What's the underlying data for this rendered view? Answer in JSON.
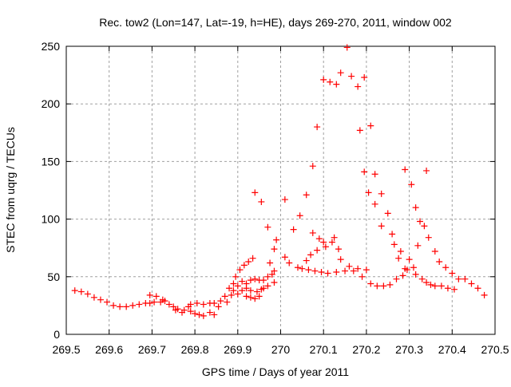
{
  "chart_data": {
    "type": "scatter",
    "title": "Rec. tow2 (Lon=147, Lat=-19, h=HE), days 269-270, 2011, window 002",
    "xlabel": "GPS time / Days of year 2011",
    "ylabel": "STEC from uqrg / TECUs",
    "xlim": [
      269.5,
      270.5
    ],
    "ylim": [
      0,
      250
    ],
    "xticks": [
      "269.5",
      "269.6",
      "269.7",
      "269.8",
      "269.9",
      "270",
      "270.1",
      "270.2",
      "270.3",
      "270.4",
      "270.5"
    ],
    "yticks": [
      "0",
      "50",
      "100",
      "150",
      "200",
      "250"
    ],
    "grid": true,
    "marker": "+",
    "color": "#ff0000",
    "points": [
      [
        269.52,
        38
      ],
      [
        269.535,
        37
      ],
      [
        269.55,
        35
      ],
      [
        269.565,
        32
      ],
      [
        269.58,
        30
      ],
      [
        269.595,
        28
      ],
      [
        269.61,
        25
      ],
      [
        269.625,
        24
      ],
      [
        269.64,
        24
      ],
      [
        269.655,
        25
      ],
      [
        269.67,
        26
      ],
      [
        269.685,
        27
      ],
      [
        269.695,
        27
      ],
      [
        269.705,
        28
      ],
      [
        269.72,
        28
      ],
      [
        269.73,
        29
      ],
      [
        269.695,
        34
      ],
      [
        269.71,
        33
      ],
      [
        269.725,
        30
      ],
      [
        269.74,
        26
      ],
      [
        269.75,
        24
      ],
      [
        269.76,
        22
      ],
      [
        269.775,
        21
      ],
      [
        269.785,
        24
      ],
      [
        269.79,
        20
      ],
      [
        269.8,
        18
      ],
      [
        269.81,
        17
      ],
      [
        269.82,
        16
      ],
      [
        269.835,
        19
      ],
      [
        269.845,
        17
      ],
      [
        269.755,
        21
      ],
      [
        269.77,
        19
      ],
      [
        269.79,
        26
      ],
      [
        269.805,
        27
      ],
      [
        269.82,
        26
      ],
      [
        269.835,
        27
      ],
      [
        269.845,
        27
      ],
      [
        269.855,
        24
      ],
      [
        269.86,
        29
      ],
      [
        269.87,
        33
      ],
      [
        269.875,
        28
      ],
      [
        269.885,
        34
      ],
      [
        269.88,
        40
      ],
      [
        269.89,
        44
      ],
      [
        269.895,
        50
      ],
      [
        269.905,
        56
      ],
      [
        269.915,
        60
      ],
      [
        269.925,
        63
      ],
      [
        269.935,
        66
      ],
      [
        269.89,
        38
      ],
      [
        269.9,
        35
      ],
      [
        269.91,
        38
      ],
      [
        269.92,
        33
      ],
      [
        269.93,
        32
      ],
      [
        269.94,
        31
      ],
      [
        269.95,
        33
      ],
      [
        269.9,
        42
      ],
      [
        269.91,
        46
      ],
      [
        269.92,
        44
      ],
      [
        269.93,
        47
      ],
      [
        269.94,
        48
      ],
      [
        269.95,
        47
      ],
      [
        269.96,
        47
      ],
      [
        269.97,
        50
      ],
      [
        269.98,
        52
      ],
      [
        269.985,
        55
      ],
      [
        269.96,
        40
      ],
      [
        269.97,
        42
      ],
      [
        269.985,
        45
      ],
      [
        269.92,
        40
      ],
      [
        269.93,
        38
      ],
      [
        269.945,
        37
      ],
      [
        269.955,
        39
      ],
      [
        269.94,
        123
      ],
      [
        269.955,
        115
      ],
      [
        269.97,
        93
      ],
      [
        269.975,
        62
      ],
      [
        269.985,
        74
      ],
      [
        269.99,
        82
      ],
      [
        270.01,
        117
      ],
      [
        270.01,
        67
      ],
      [
        270.02,
        62
      ],
      [
        270.03,
        91
      ],
      [
        270.04,
        58
      ],
      [
        270.045,
        103
      ],
      [
        270.05,
        57
      ],
      [
        270.06,
        121
      ],
      [
        270.06,
        64
      ],
      [
        270.065,
        56
      ],
      [
        270.07,
        69
      ],
      [
        270.075,
        146
      ],
      [
        270.075,
        88
      ],
      [
        270.08,
        55
      ],
      [
        270.085,
        180
      ],
      [
        270.085,
        73
      ],
      [
        270.09,
        83
      ],
      [
        270.095,
        54
      ],
      [
        270.1,
        221
      ],
      [
        270.1,
        80
      ],
      [
        270.105,
        76
      ],
      [
        270.11,
        53
      ],
      [
        270.115,
        219
      ],
      [
        270.12,
        80
      ],
      [
        270.125,
        84
      ],
      [
        270.13,
        217
      ],
      [
        270.13,
        54
      ],
      [
        270.135,
        74
      ],
      [
        270.14,
        227
      ],
      [
        270.14,
        65
      ],
      [
        270.15,
        55
      ],
      [
        270.155,
        249
      ],
      [
        270.16,
        59
      ],
      [
        270.165,
        224
      ],
      [
        270.17,
        55
      ],
      [
        270.18,
        215
      ],
      [
        270.18,
        57
      ],
      [
        270.185,
        177
      ],
      [
        270.19,
        50
      ],
      [
        270.195,
        223
      ],
      [
        270.195,
        141
      ],
      [
        270.2,
        56
      ],
      [
        270.205,
        123
      ],
      [
        270.21,
        181
      ],
      [
        270.21,
        44
      ],
      [
        270.22,
        139
      ],
      [
        270.22,
        113
      ],
      [
        270.225,
        42
      ],
      [
        270.235,
        122
      ],
      [
        270.235,
        94
      ],
      [
        270.24,
        42
      ],
      [
        270.25,
        105
      ],
      [
        270.255,
        43
      ],
      [
        270.26,
        87
      ],
      [
        270.265,
        78
      ],
      [
        270.27,
        48
      ],
      [
        270.275,
        66
      ],
      [
        270.28,
        72
      ],
      [
        270.285,
        51
      ],
      [
        270.29,
        143
      ],
      [
        270.29,
        57
      ],
      [
        270.295,
        56
      ],
      [
        270.3,
        65
      ],
      [
        270.305,
        130
      ],
      [
        270.31,
        58
      ],
      [
        270.315,
        110
      ],
      [
        270.315,
        52
      ],
      [
        270.32,
        77
      ],
      [
        270.325,
        98
      ],
      [
        270.33,
        48
      ],
      [
        270.335,
        94
      ],
      [
        270.34,
        142
      ],
      [
        270.34,
        45
      ],
      [
        270.345,
        84
      ],
      [
        270.35,
        43
      ],
      [
        270.36,
        72
      ],
      [
        270.36,
        42
      ],
      [
        270.37,
        63
      ],
      [
        270.375,
        42
      ],
      [
        270.385,
        58
      ],
      [
        270.39,
        40
      ],
      [
        270.4,
        53
      ],
      [
        270.405,
        39
      ],
      [
        270.415,
        48
      ],
      [
        270.43,
        48
      ],
      [
        270.445,
        44
      ],
      [
        270.46,
        40
      ],
      [
        270.475,
        34
      ]
    ]
  }
}
